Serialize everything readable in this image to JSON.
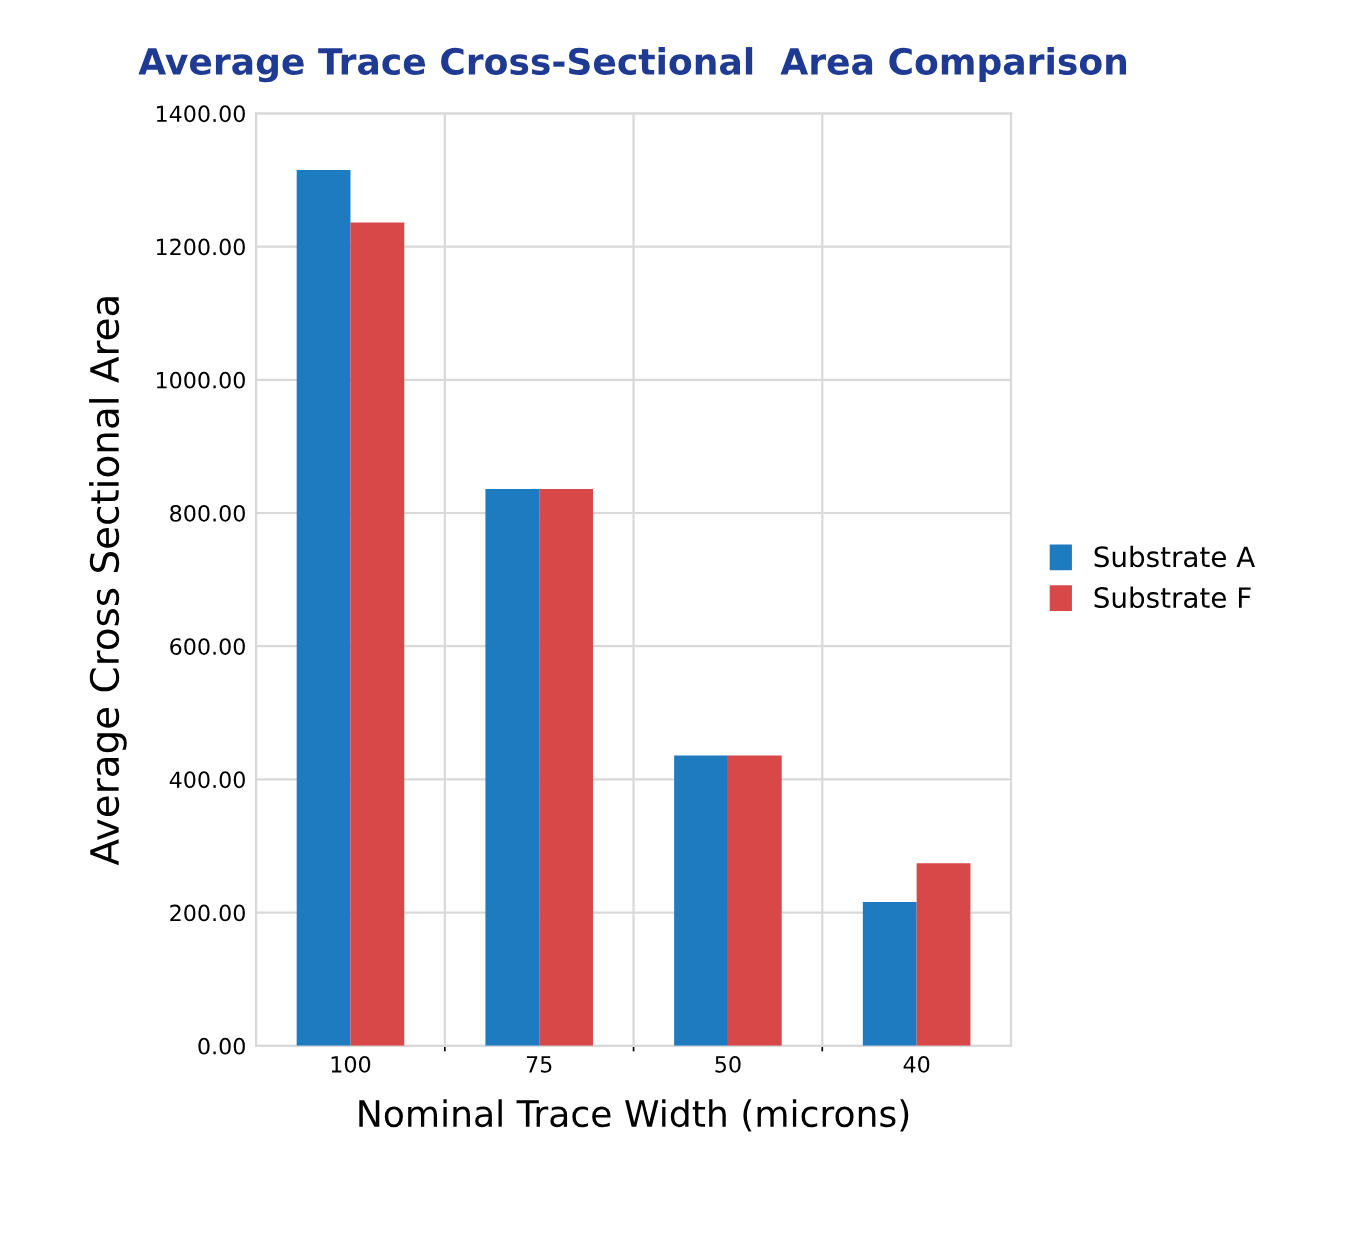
{
  "chart_data": {
    "type": "bar",
    "title": "Average Trace Cross-Sectional  Area Comparison",
    "xlabel": "Nominal Trace Width (microns)",
    "ylabel": "Average Cross Sectional Area",
    "categories": [
      "100",
      "75",
      "50",
      "40"
    ],
    "series": [
      {
        "name": "Substrate A",
        "color": "#1f7bbf",
        "values": [
          1315,
          836,
          436,
          216
        ]
      },
      {
        "name": "Substrate F",
        "color": "#d94848",
        "values": [
          1236,
          836,
          436,
          274
        ]
      }
    ],
    "ylim": [
      0,
      1400
    ],
    "yticks": [
      {
        "value": 0,
        "label": "0.00"
      },
      {
        "value": 200,
        "label": "200.00"
      },
      {
        "value": 400,
        "label": "400.00"
      },
      {
        "value": 600,
        "label": "600.00"
      },
      {
        "value": 800,
        "label": "800.00"
      },
      {
        "value": 1000,
        "label": "1000.00"
      },
      {
        "value": 1200,
        "label": "1200.00"
      },
      {
        "value": 1400,
        "label": "1400.00"
      }
    ],
    "grid": true,
    "legend": "right"
  }
}
